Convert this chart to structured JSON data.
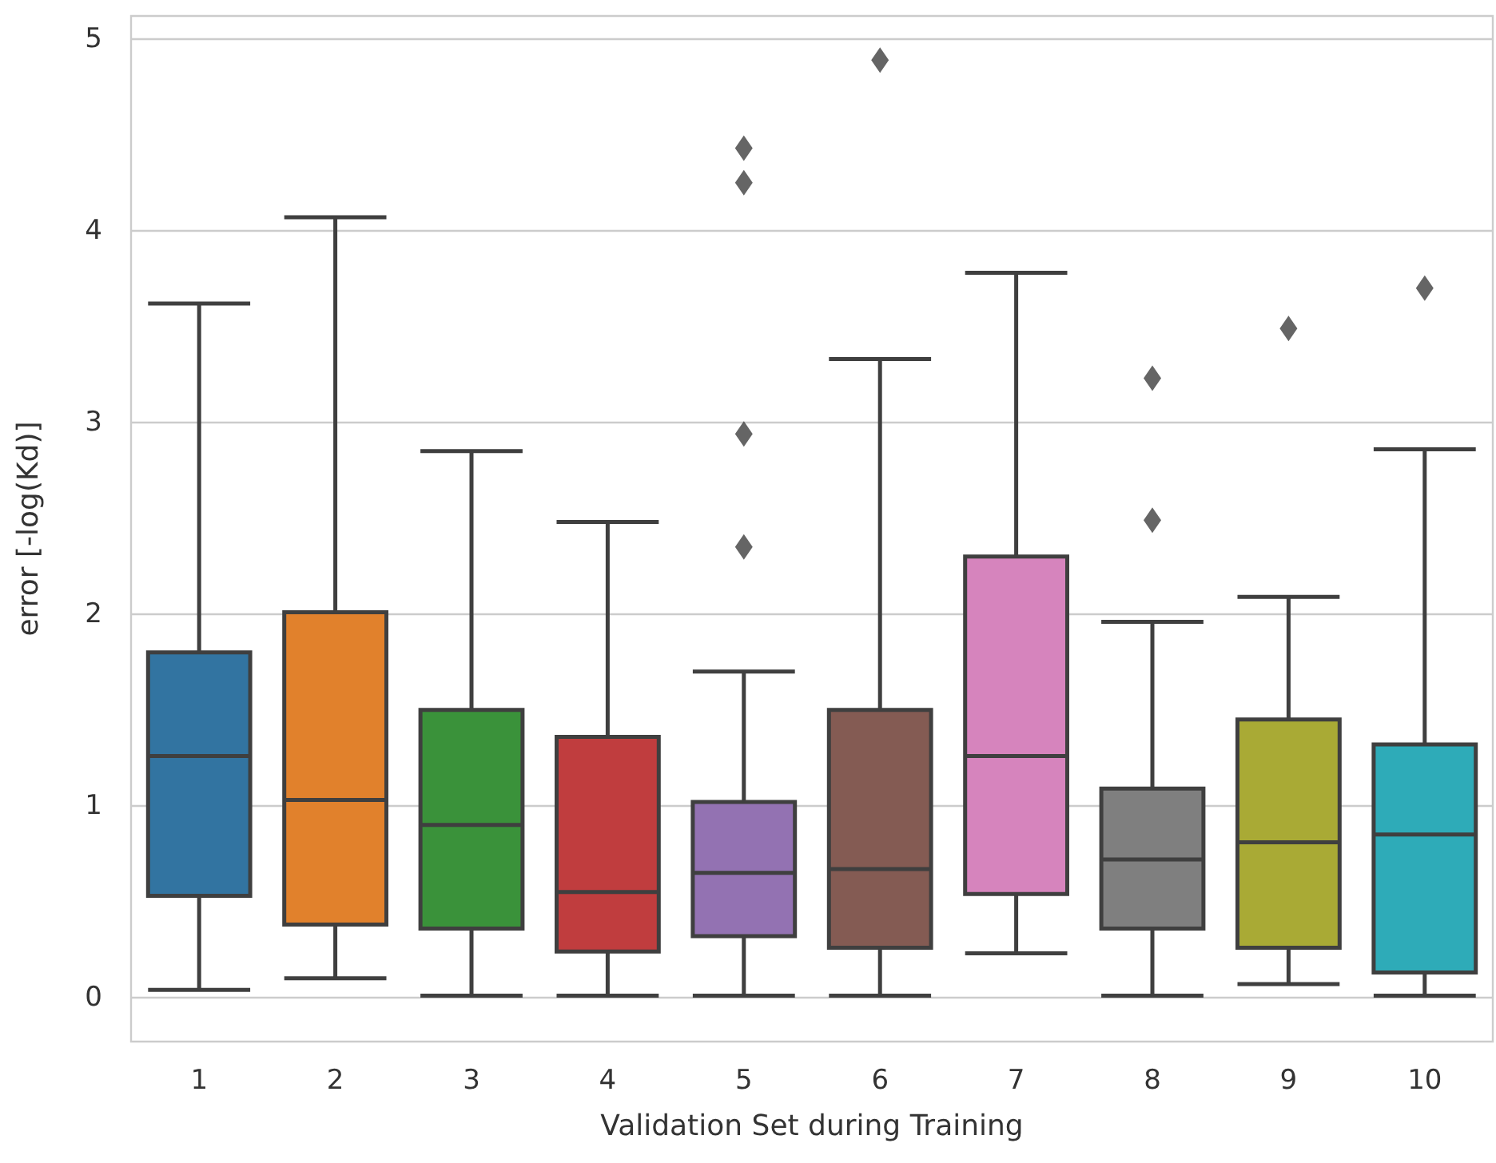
{
  "chart_data": {
    "type": "box",
    "xlabel": "Validation Set during Training",
    "ylabel": "error [-log(Kd)]",
    "categories": [
      "1",
      "2",
      "3",
      "4",
      "5",
      "6",
      "7",
      "8",
      "9",
      "10"
    ],
    "colors": [
      "#3274a1",
      "#e1812c",
      "#3a923a",
      "#c03d3e",
      "#9372b2",
      "#845b53",
      "#d684bd",
      "#7f7f7f",
      "#a9aa35",
      "#2eabb8"
    ],
    "boxes": [
      {
        "low": 0.04,
        "q1": 0.53,
        "median": 1.26,
        "q3": 1.8,
        "high": 3.62
      },
      {
        "low": 0.1,
        "q1": 0.38,
        "median": 1.03,
        "q3": 2.01,
        "high": 4.07
      },
      {
        "low": 0.01,
        "q1": 0.36,
        "median": 0.9,
        "q3": 1.5,
        "high": 2.85
      },
      {
        "low": 0.01,
        "q1": 0.24,
        "median": 0.55,
        "q3": 1.36,
        "high": 2.48
      },
      {
        "low": 0.01,
        "q1": 0.32,
        "median": 0.65,
        "q3": 1.02,
        "high": 1.7,
        "outliers": [
          4.43,
          4.25,
          2.94,
          2.35
        ]
      },
      {
        "low": 0.01,
        "q1": 0.26,
        "median": 0.67,
        "q3": 1.5,
        "high": 3.33,
        "outliers": [
          4.89
        ]
      },
      {
        "low": 0.23,
        "q1": 0.54,
        "median": 1.26,
        "q3": 2.3,
        "high": 3.78
      },
      {
        "low": 0.01,
        "q1": 0.36,
        "median": 0.72,
        "q3": 1.09,
        "high": 1.96,
        "outliers": [
          3.23,
          2.49
        ]
      },
      {
        "low": 0.07,
        "q1": 0.26,
        "median": 0.81,
        "q3": 1.45,
        "high": 2.09,
        "outliers": [
          3.49
        ]
      },
      {
        "low": 0.01,
        "q1": 0.13,
        "median": 0.85,
        "q3": 1.32,
        "high": 2.86,
        "outliers": [
          3.7
        ]
      }
    ],
    "marker": "diamond",
    "ylim": [
      -0.23,
      5.12
    ],
    "yticks": [
      0,
      1,
      2,
      3,
      4,
      5
    ],
    "grid": "y"
  }
}
